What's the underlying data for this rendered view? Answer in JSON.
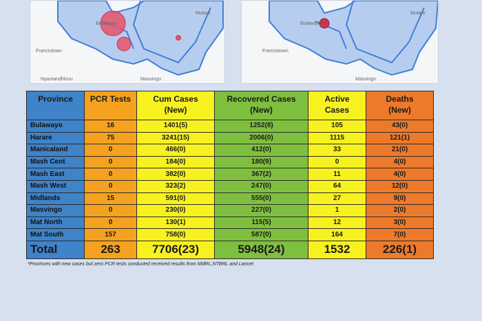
{
  "maps": {
    "left_labels": [
      "Francistown",
      "Bulawayo",
      "Mutare",
      "Masvingo",
      "Nyamandhlovu"
    ],
    "right_labels": [
      "Francistown",
      "Bulawayo",
      "Mutare",
      "Masvingo"
    ],
    "bubble_color": "#e8536a",
    "region_fill": "#b7cdef",
    "region_stroke": "#3f7fd9"
  },
  "table": {
    "headers": {
      "province": "Province",
      "pcr": "PCR Tests",
      "cum_line1": "Cum Cases",
      "cum_line2": "(New)",
      "rec_line1": "Recovered Cases",
      "rec_line2": "(New)",
      "act_line1": "Active",
      "act_line2": "Cases",
      "dth_line1": "Deaths",
      "dth_line2": "(New)"
    },
    "rows": [
      {
        "province": "Bulawayo",
        "pcr": "16",
        "cum": "1401(5)",
        "rec": "1252(8)",
        "active": "105",
        "deaths": "43(0)"
      },
      {
        "province": "Harare",
        "pcr": "75",
        "cum": "3241(15)",
        "rec": "2006(0)",
        "active": "1115",
        "deaths": "121(1)"
      },
      {
        "province": "Manicaland",
        "pcr": "0",
        "cum": "466(0)",
        "rec": "412(0)",
        "active": "33",
        "deaths": "21(0)"
      },
      {
        "province": "Mash Cent",
        "pcr": "0",
        "cum": "184(0)",
        "rec": "180(9)",
        "active": "0",
        "deaths": "4(0)"
      },
      {
        "province": "Mash East",
        "pcr": "0",
        "cum": "382(0)",
        "rec": "367(2)",
        "active": "11",
        "deaths": "4(0)"
      },
      {
        "province": "Mash West",
        "pcr": "0",
        "cum": "323(2)",
        "rec": "247(0)",
        "active": "64",
        "deaths": "12(0)"
      },
      {
        "province": "Midlands",
        "pcr": "15",
        "cum": "591(0)",
        "rec": "555(0)",
        "active": "27",
        "deaths": "9(0)"
      },
      {
        "province": "Masvingo",
        "pcr": "0",
        "cum": "230(0)",
        "rec": "227(0)",
        "active": "1",
        "deaths": "2(0)"
      },
      {
        "province": "Mat North",
        "pcr": "0",
        "cum": "130(1)",
        "rec": "115(5)",
        "active": "12",
        "deaths": "3(0)"
      },
      {
        "province": "Mat South",
        "pcr": "157",
        "cum": "758(0)",
        "rec": "587(0)",
        "active": "164",
        "deaths": "7(0)"
      }
    ],
    "total": {
      "label": "Total",
      "pcr": "263",
      "cum": "7706(23)",
      "rec": "5948(24)",
      "active": "1532",
      "deaths": "226(1)"
    }
  },
  "footnote": "*Provinces with new cases but zero PCR tests conducted received results from NMRL,NTBRL and Lancet"
}
